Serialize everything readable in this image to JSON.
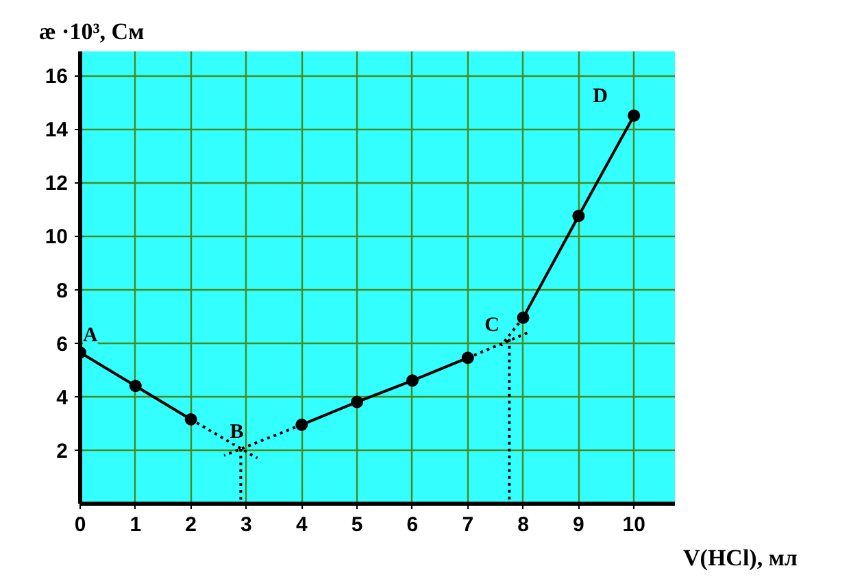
{
  "chart_data": {
    "type": "line",
    "xlabel": "V(HCl), мл",
    "ylabel": "æ ·10³, См",
    "xlim": [
      0,
      10.74
    ],
    "ylim": [
      0,
      16.9
    ],
    "xticks": [
      0,
      1,
      2,
      3,
      4,
      5,
      6,
      7,
      8,
      9,
      10
    ],
    "yticks": [
      2,
      4,
      6,
      8,
      10,
      12,
      14,
      16
    ],
    "grid": true,
    "series": [
      {
        "color": "#000000",
        "marker": "circle",
        "line_style": "solid",
        "x": [
          0,
          1,
          2
        ],
        "values": [
          5.65,
          4.4,
          3.15
        ]
      },
      {
        "color": "#000000",
        "marker": "circle",
        "line_style": "solid",
        "x": [
          4,
          5,
          6,
          7
        ],
        "values": [
          2.95,
          3.8,
          4.6,
          5.45
        ]
      },
      {
        "color": "#000000",
        "marker": "circle",
        "line_style": "solid",
        "x": [
          8,
          9,
          10
        ],
        "values": [
          6.95,
          10.75,
          14.5
        ]
      },
      {
        "color": "#000000",
        "marker": "none",
        "line_style": "dotted",
        "x": [
          2,
          3.2
        ],
        "values": [
          3.15,
          1.7
        ]
      },
      {
        "color": "#000000",
        "marker": "none",
        "line_style": "dotted",
        "x": [
          4,
          2.6
        ],
        "values": [
          2.95,
          1.8
        ]
      },
      {
        "color": "#000000",
        "marker": "none",
        "line_style": "dotted",
        "x": [
          2.9,
          2.9
        ],
        "values": [
          2.05,
          0
        ]
      },
      {
        "color": "#000000",
        "marker": "none",
        "line_style": "dotted",
        "x": [
          7,
          8.1
        ],
        "values": [
          5.45,
          6.4
        ]
      },
      {
        "color": "#000000",
        "marker": "none",
        "line_style": "dotted",
        "x": [
          8,
          7.6
        ],
        "values": [
          6.95,
          5.9
        ]
      },
      {
        "color": "#000000",
        "marker": "none",
        "line_style": "dotted",
        "x": [
          7.75,
          7.75
        ],
        "values": [
          6.15,
          0
        ]
      }
    ],
    "annotations": [
      {
        "text": "A",
        "x": 0,
        "y": 5.65
      },
      {
        "text": "B",
        "x": 2.9,
        "y": 2.05
      },
      {
        "text": "C",
        "x": 7.75,
        "y": 6.15
      },
      {
        "text": "D",
        "x": 10,
        "y": 14.5
      }
    ]
  }
}
